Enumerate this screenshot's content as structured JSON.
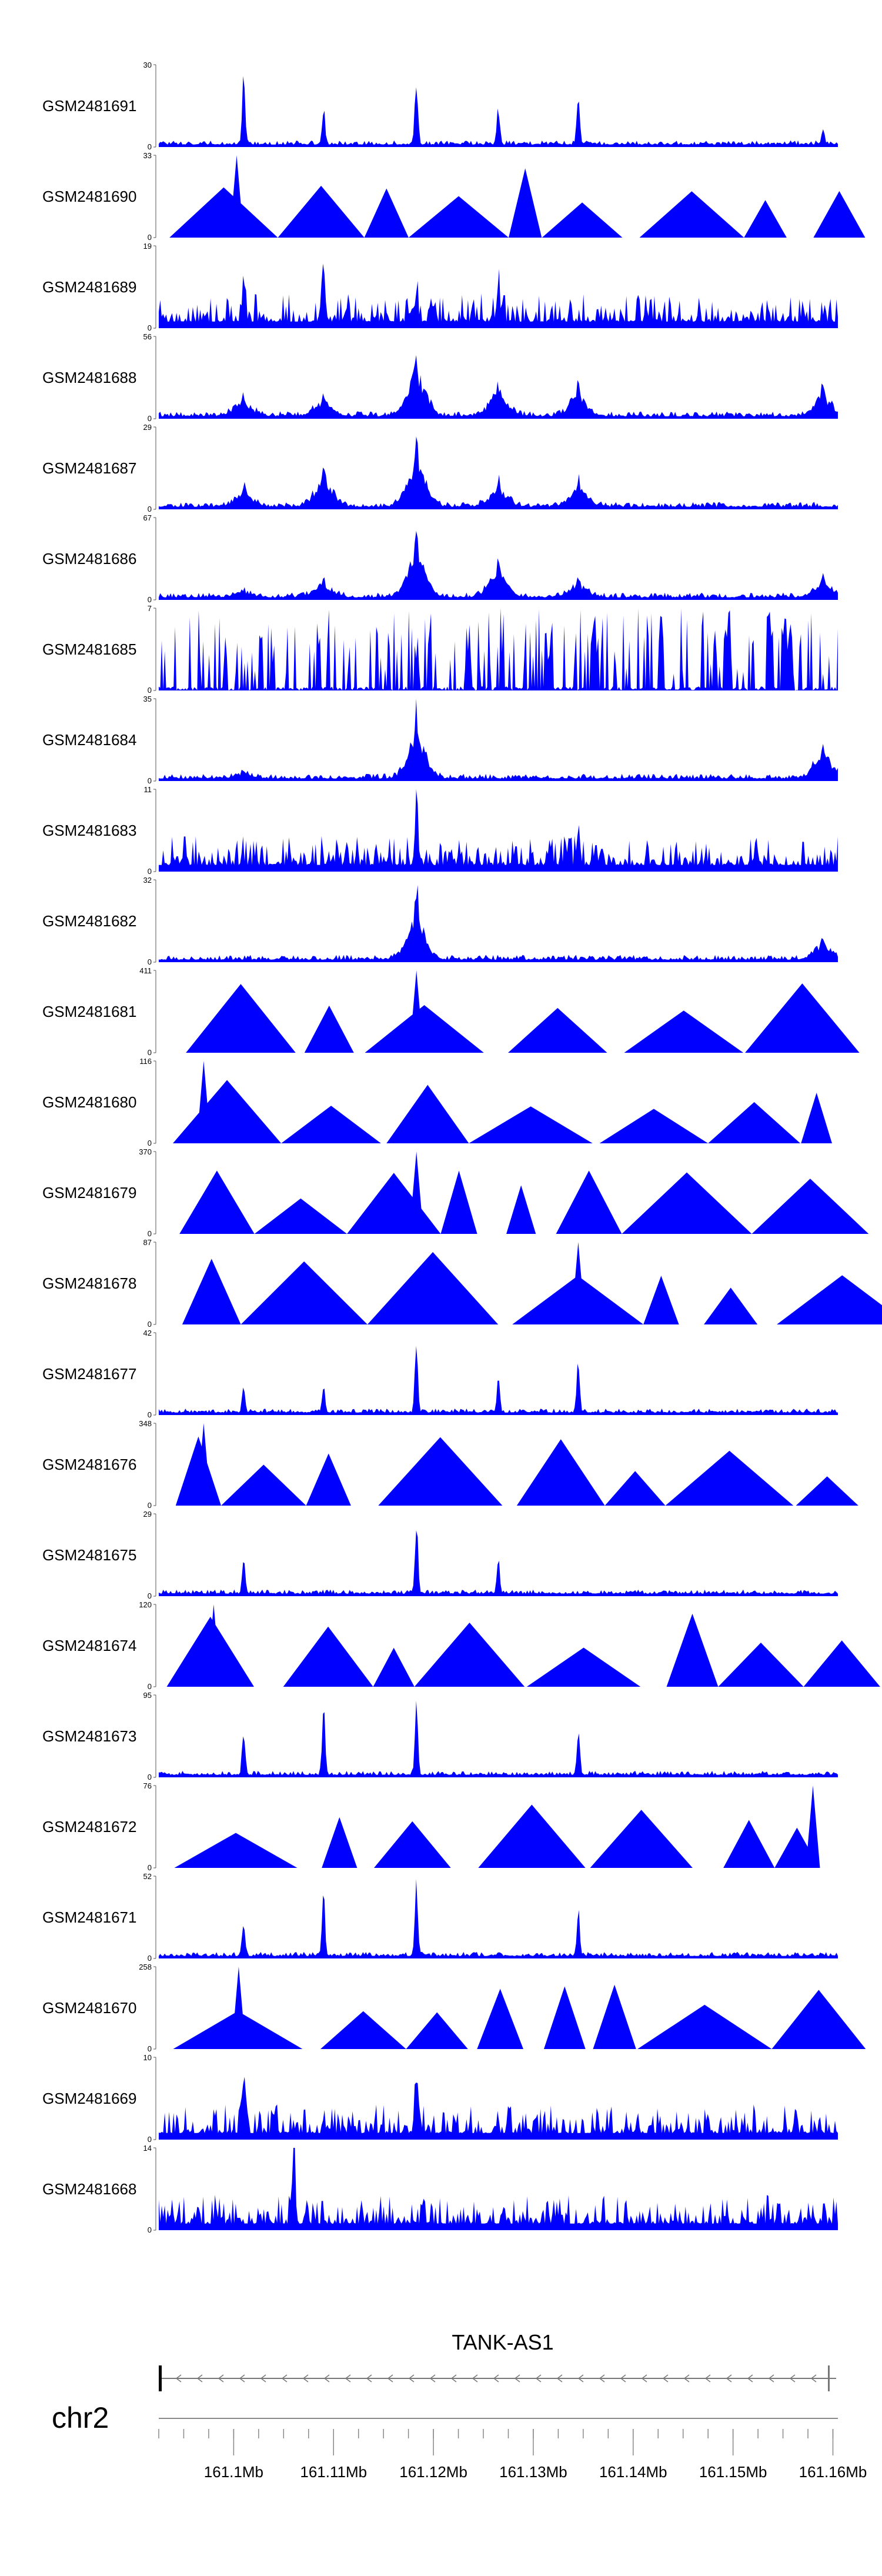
{
  "chart_data": {
    "type": "area",
    "title": "",
    "chromosome": "chr2",
    "gene": {
      "name": "TANK-AS1",
      "strand": "-"
    },
    "xlabel": "",
    "xunit": "Mb",
    "xlim": [
      161.0925,
      161.1605
    ],
    "xticks": [
      161.1,
      161.11,
      161.12,
      161.13,
      161.14,
      161.15,
      161.16
    ],
    "xtick_labels": [
      "161.1Mb",
      "161.11Mb",
      "161.12Mb",
      "161.13Mb",
      "161.14Mb",
      "161.15Mb",
      "161.16Mb"
    ],
    "minor_step": 0.0025,
    "fill_color": "#0000ff",
    "peaks_mb": [
      161.101,
      161.109,
      161.1183,
      161.1265,
      161.1345,
      161.159
    ],
    "series": [
      {
        "name": "GSM2481691",
        "ymax": 30,
        "y_ticks": [
          "30",
          "0"
        ],
        "profile": "spiky",
        "seed": 11,
        "peaks": [
          [
            161.101,
            1.0
          ],
          [
            161.109,
            0.45
          ],
          [
            161.1183,
            0.9
          ],
          [
            161.1265,
            0.5
          ],
          [
            161.1345,
            0.7
          ],
          [
            161.159,
            0.2
          ]
        ]
      },
      {
        "name": "GSM2481690",
        "ymax": 33,
        "y_ticks": [
          "33",
          "0"
        ],
        "profile": "triangles",
        "seed": 12,
        "peaks": [
          [
            161.1003,
            1.0
          ]
        ]
      },
      {
        "name": "GSM2481689",
        "ymax": 19,
        "y_ticks": [
          "19",
          "0"
        ],
        "profile": "noisy",
        "seed": 13,
        "peaks": [
          [
            161.101,
            0.6
          ],
          [
            161.109,
            1.0
          ],
          [
            161.1183,
            0.5
          ],
          [
            161.1265,
            0.5
          ]
        ]
      },
      {
        "name": "GSM2481688",
        "ymax": 56,
        "y_ticks": [
          "56",
          "0"
        ],
        "profile": "broad",
        "seed": 14,
        "peaks": [
          [
            161.101,
            0.3
          ],
          [
            161.109,
            0.3
          ],
          [
            161.1183,
            1.0
          ],
          [
            161.1265,
            0.5
          ],
          [
            161.1345,
            0.45
          ],
          [
            161.159,
            0.45
          ]
        ]
      },
      {
        "name": "GSM2481687",
        "ymax": 29,
        "y_ticks": [
          "29",
          "0"
        ],
        "profile": "broad",
        "seed": 15,
        "peaks": [
          [
            161.101,
            0.3
          ],
          [
            161.109,
            0.6
          ],
          [
            161.1183,
            1.0
          ],
          [
            161.1265,
            0.4
          ],
          [
            161.1345,
            0.4
          ]
        ]
      },
      {
        "name": "GSM2481686",
        "ymax": 67,
        "y_ticks": [
          "67",
          "0"
        ],
        "profile": "broad",
        "seed": 16,
        "peaks": [
          [
            161.101,
            0.1
          ],
          [
            161.109,
            0.25
          ],
          [
            161.1183,
            0.95
          ],
          [
            161.1265,
            0.55
          ],
          [
            161.1345,
            0.3
          ],
          [
            161.159,
            0.3
          ]
        ]
      },
      {
        "name": "GSM2481685",
        "ymax": 7,
        "y_ticks": [
          "7",
          "0"
        ],
        "profile": "bars",
        "seed": 17,
        "peaks": []
      },
      {
        "name": "GSM2481684",
        "ymax": 35,
        "y_ticks": [
          "35",
          "0"
        ],
        "profile": "broad",
        "seed": 18,
        "peaks": [
          [
            161.101,
            0.1
          ],
          [
            161.1183,
            1.0
          ],
          [
            161.159,
            0.55
          ]
        ]
      },
      {
        "name": "GSM2481683",
        "ymax": 11,
        "y_ticks": [
          "11",
          "0"
        ],
        "profile": "noisy",
        "seed": 19,
        "peaks": [
          [
            161.1183,
            0.9
          ],
          [
            161.1345,
            0.4
          ]
        ]
      },
      {
        "name": "GSM2481682",
        "ymax": 32,
        "y_ticks": [
          "32",
          "0"
        ],
        "profile": "broad",
        "seed": 20,
        "peaks": [
          [
            161.1183,
            1.0
          ],
          [
            161.159,
            0.35
          ]
        ]
      },
      {
        "name": "GSM2481681",
        "ymax": 411,
        "y_ticks": [
          "411",
          "0"
        ],
        "profile": "triangles",
        "seed": 21,
        "peaks": [
          [
            161.1183,
            1.0
          ]
        ]
      },
      {
        "name": "GSM2481680",
        "ymax": 116,
        "y_ticks": [
          "116",
          "0"
        ],
        "profile": "triangles",
        "seed": 22,
        "peaks": [
          [
            161.097,
            1.0
          ]
        ]
      },
      {
        "name": "GSM2481679",
        "ymax": 370,
        "y_ticks": [
          "370",
          "0"
        ],
        "profile": "triangles",
        "seed": 23,
        "peaks": [
          [
            161.1183,
            1.0
          ]
        ]
      },
      {
        "name": "GSM2481678",
        "ymax": 87,
        "y_ticks": [
          "87",
          "0"
        ],
        "profile": "triangles",
        "seed": 24,
        "peaks": [
          [
            161.1345,
            1.0
          ]
        ]
      },
      {
        "name": "GSM2481677",
        "ymax": 42,
        "y_ticks": [
          "42",
          "0"
        ],
        "profile": "spiky",
        "seed": 25,
        "peaks": [
          [
            161.101,
            0.35
          ],
          [
            161.109,
            0.35
          ],
          [
            161.1183,
            1.0
          ],
          [
            161.1265,
            0.45
          ],
          [
            161.1345,
            0.7
          ]
        ]
      },
      {
        "name": "GSM2481676",
        "ymax": 348,
        "y_ticks": [
          "348",
          "0"
        ],
        "profile": "triangles",
        "seed": 26,
        "peaks": [
          [
            161.097,
            1.0
          ]
        ]
      },
      {
        "name": "GSM2481675",
        "ymax": 29,
        "y_ticks": [
          "29",
          "0"
        ],
        "profile": "spiky",
        "seed": 27,
        "peaks": [
          [
            161.101,
            0.5
          ],
          [
            161.1183,
            1.0
          ],
          [
            161.1265,
            0.5
          ]
        ]
      },
      {
        "name": "GSM2481674",
        "ymax": 120,
        "y_ticks": [
          "120",
          "0"
        ],
        "profile": "triangles",
        "seed": 28,
        "peaks": [
          [
            161.098,
            1.0
          ]
        ]
      },
      {
        "name": "GSM2481673",
        "ymax": 95,
        "y_ticks": [
          "95",
          "0"
        ],
        "profile": "spiky",
        "seed": 29,
        "peaks": [
          [
            161.101,
            0.6
          ],
          [
            161.109,
            1.0
          ],
          [
            161.1183,
            0.9
          ],
          [
            161.1345,
            0.6
          ]
        ]
      },
      {
        "name": "GSM2481672",
        "ymax": 76,
        "y_ticks": [
          "76",
          "0"
        ],
        "profile": "triangles",
        "seed": 30,
        "peaks": [
          [
            161.158,
            1.0
          ]
        ]
      },
      {
        "name": "GSM2481671",
        "ymax": 52,
        "y_ticks": [
          "52",
          "0"
        ],
        "profile": "spiky",
        "seed": 31,
        "peaks": [
          [
            161.101,
            0.45
          ],
          [
            161.109,
            0.8
          ],
          [
            161.1183,
            1.0
          ],
          [
            161.1345,
            0.6
          ]
        ]
      },
      {
        "name": "GSM2481670",
        "ymax": 258,
        "y_ticks": [
          "258",
          "0"
        ],
        "profile": "triangles",
        "seed": 32,
        "peaks": [
          [
            161.1005,
            1.0
          ]
        ]
      },
      {
        "name": "GSM2481669",
        "ymax": 10,
        "y_ticks": [
          "10",
          "0"
        ],
        "profile": "noisy",
        "seed": 33,
        "peaks": [
          [
            161.101,
            0.8
          ],
          [
            161.1183,
            0.9
          ]
        ]
      },
      {
        "name": "GSM2481668",
        "ymax": 14,
        "y_ticks": [
          "14",
          "0"
        ],
        "profile": "noisy",
        "seed": 34,
        "peaks": [
          [
            161.106,
            1.0
          ]
        ]
      }
    ]
  }
}
